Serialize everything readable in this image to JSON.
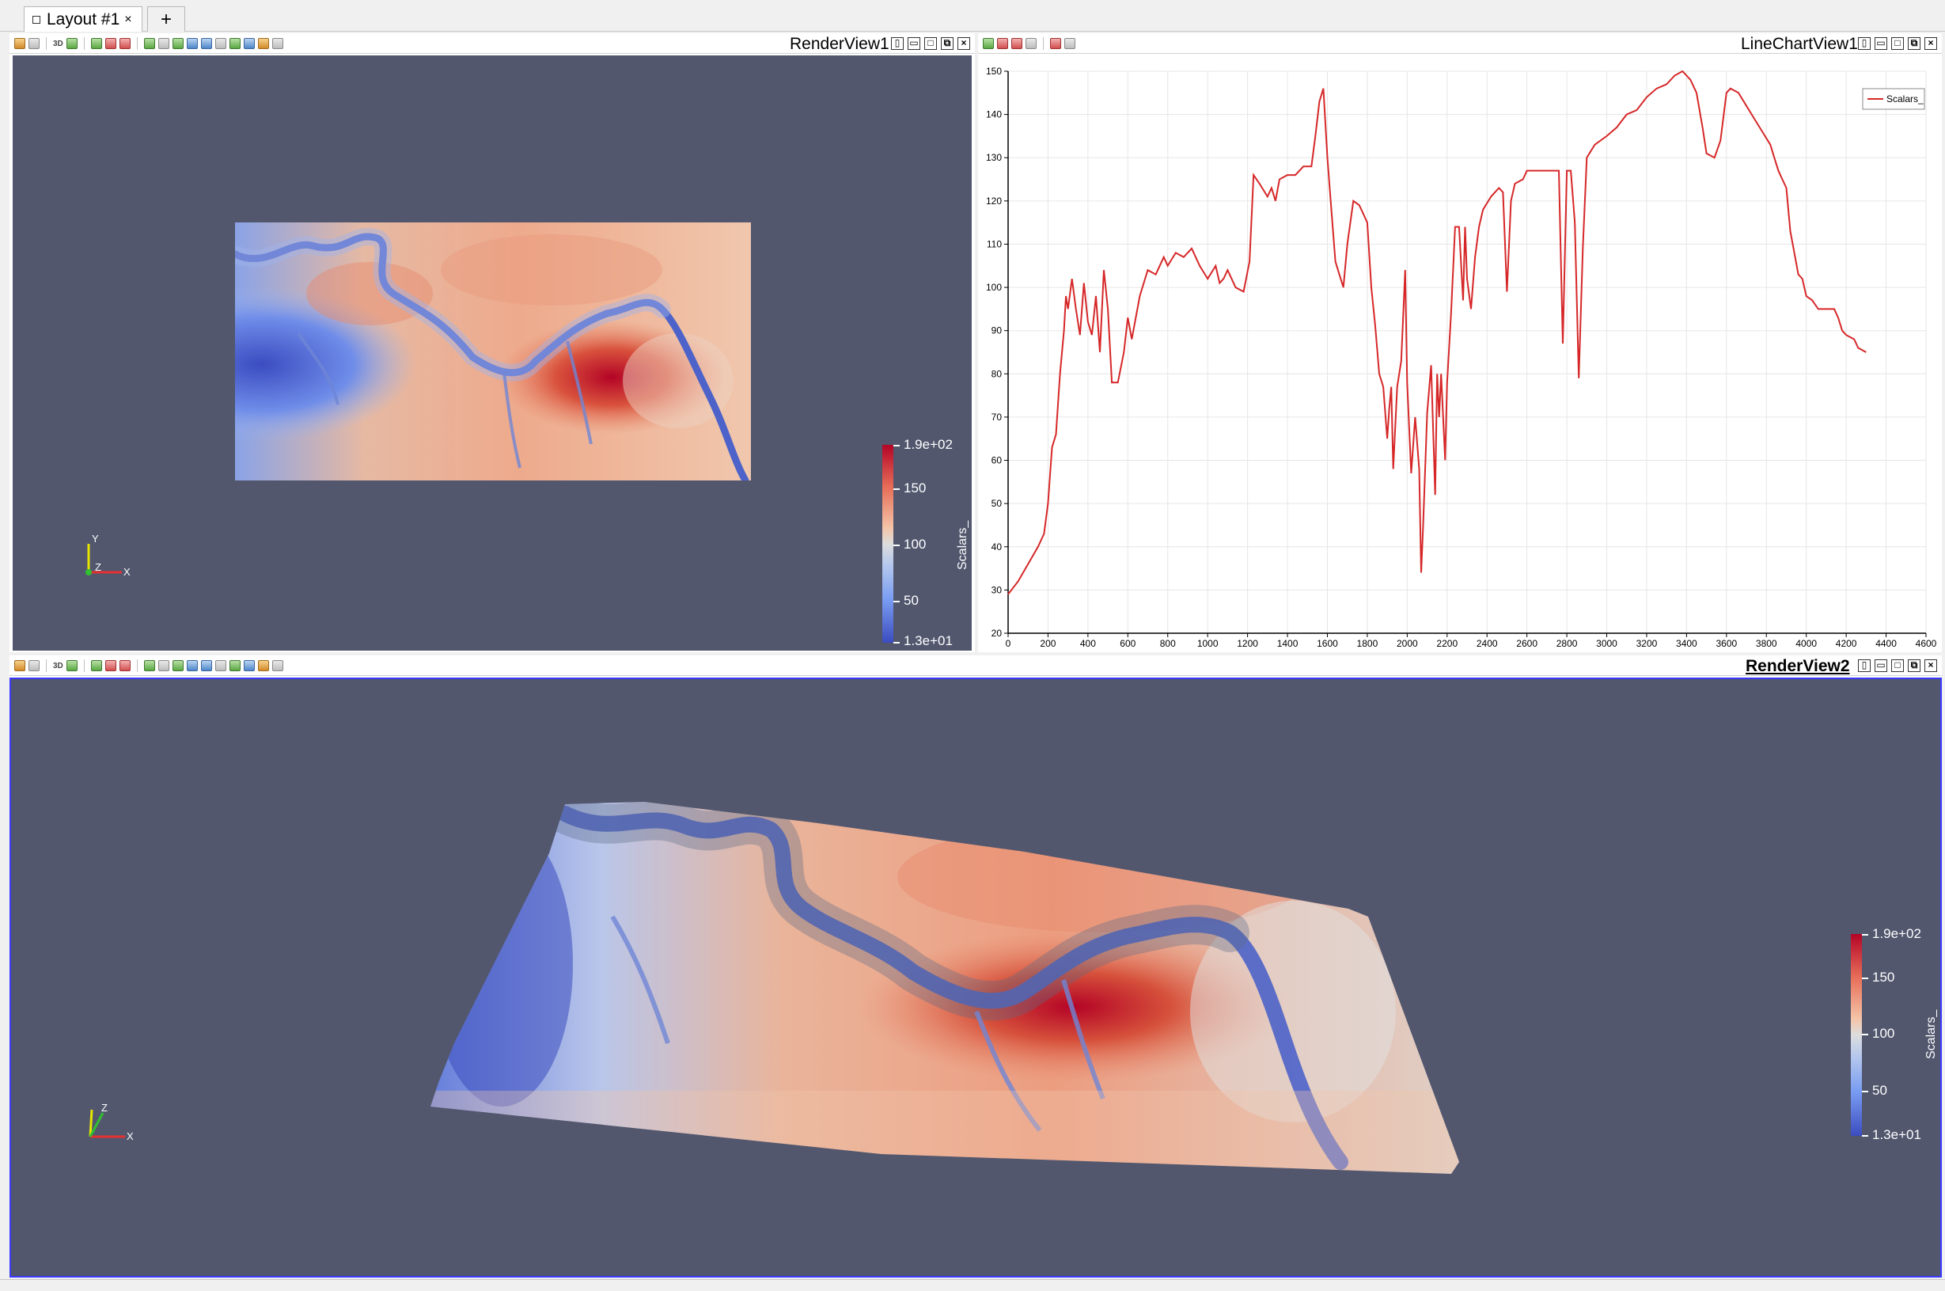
{
  "layout_tabs": [
    {
      "label": "Layout #1",
      "close": "×"
    },
    {
      "label": "+"
    }
  ],
  "toolbar": {
    "threed_label": "3D"
  },
  "views": {
    "render_view_1": {
      "title": "RenderView1"
    },
    "line_chart_view_1": {
      "title": "LineChartView1"
    },
    "render_view_2": {
      "title": "RenderView2"
    }
  },
  "view_buttons": [
    "split-horizontal",
    "split-vertical",
    "maximize",
    "undock",
    "close"
  ],
  "scalar_bar": {
    "title": "Scalars_",
    "labels": [
      "1.9e+02",
      "150",
      "100",
      "50",
      "1.3e+01"
    ]
  },
  "axes": {
    "x": "X",
    "y": "Y",
    "z": "Z"
  },
  "colors": {
    "background": "#52576e",
    "line": "#d62728",
    "colormap_high": "#b40426",
    "colormap_low": "#3b4cc0",
    "active_frame": "#3a3aff"
  },
  "chart_data": {
    "type": "line",
    "legend": {
      "position": "top-right",
      "entries": [
        "Scalars_"
      ]
    },
    "xlim": [
      0,
      4600
    ],
    "ylim": [
      20,
      150
    ],
    "x_ticks": [
      0,
      200,
      400,
      600,
      800,
      1000,
      1200,
      1400,
      1600,
      1800,
      2000,
      2200,
      2400,
      2600,
      2800,
      3000,
      3200,
      3400,
      3600,
      3800,
      4000,
      4200,
      4400,
      4600
    ],
    "y_ticks": [
      20,
      30,
      40,
      50,
      60,
      70,
      80,
      90,
      100,
      110,
      120,
      130,
      140,
      150
    ],
    "grid": true,
    "series": [
      {
        "name": "Scalars_",
        "color": "#d62728",
        "points": [
          [
            0,
            29
          ],
          [
            50,
            32
          ],
          [
            100,
            36
          ],
          [
            150,
            40
          ],
          [
            180,
            43
          ],
          [
            200,
            50
          ],
          [
            220,
            63
          ],
          [
            240,
            66
          ],
          [
            260,
            80
          ],
          [
            280,
            90
          ],
          [
            290,
            98
          ],
          [
            300,
            95
          ],
          [
            320,
            102
          ],
          [
            340,
            95
          ],
          [
            360,
            89
          ],
          [
            380,
            101
          ],
          [
            400,
            92
          ],
          [
            420,
            89
          ],
          [
            440,
            98
          ],
          [
            460,
            85
          ],
          [
            480,
            104
          ],
          [
            500,
            95
          ],
          [
            520,
            78
          ],
          [
            550,
            78
          ],
          [
            580,
            85
          ],
          [
            600,
            93
          ],
          [
            620,
            88
          ],
          [
            660,
            98
          ],
          [
            700,
            104
          ],
          [
            740,
            103
          ],
          [
            780,
            107
          ],
          [
            800,
            105
          ],
          [
            840,
            108
          ],
          [
            880,
            107
          ],
          [
            920,
            109
          ],
          [
            960,
            105
          ],
          [
            1000,
            102
          ],
          [
            1040,
            105
          ],
          [
            1060,
            101
          ],
          [
            1080,
            102
          ],
          [
            1100,
            104
          ],
          [
            1140,
            100
          ],
          [
            1180,
            99
          ],
          [
            1210,
            106
          ],
          [
            1230,
            126
          ],
          [
            1260,
            124
          ],
          [
            1300,
            121
          ],
          [
            1320,
            123
          ],
          [
            1340,
            120
          ],
          [
            1360,
            125
          ],
          [
            1400,
            126
          ],
          [
            1440,
            126
          ],
          [
            1480,
            128
          ],
          [
            1520,
            128
          ],
          [
            1540,
            135
          ],
          [
            1560,
            143
          ],
          [
            1580,
            146
          ],
          [
            1600,
            130
          ],
          [
            1620,
            118
          ],
          [
            1640,
            106
          ],
          [
            1660,
            103
          ],
          [
            1680,
            100
          ],
          [
            1700,
            110
          ],
          [
            1730,
            120
          ],
          [
            1760,
            119
          ],
          [
            1780,
            117
          ],
          [
            1800,
            115
          ],
          [
            1820,
            100
          ],
          [
            1840,
            91
          ],
          [
            1860,
            80
          ],
          [
            1880,
            77
          ],
          [
            1900,
            65
          ],
          [
            1910,
            72
          ],
          [
            1920,
            77
          ],
          [
            1930,
            58
          ],
          [
            1950,
            77
          ],
          [
            1970,
            83
          ],
          [
            1990,
            104
          ],
          [
            2000,
            78
          ],
          [
            2020,
            57
          ],
          [
            2040,
            70
          ],
          [
            2060,
            58
          ],
          [
            2070,
            34
          ],
          [
            2080,
            45
          ],
          [
            2100,
            71
          ],
          [
            2120,
            82
          ],
          [
            2140,
            52
          ],
          [
            2150,
            80
          ],
          [
            2160,
            70
          ],
          [
            2170,
            80
          ],
          [
            2190,
            60
          ],
          [
            2200,
            78
          ],
          [
            2220,
            94
          ],
          [
            2240,
            114
          ],
          [
            2260,
            114
          ],
          [
            2280,
            97
          ],
          [
            2290,
            114
          ],
          [
            2300,
            102
          ],
          [
            2320,
            95
          ],
          [
            2340,
            107
          ],
          [
            2360,
            114
          ],
          [
            2380,
            118
          ],
          [
            2420,
            121
          ],
          [
            2460,
            123
          ],
          [
            2480,
            122
          ],
          [
            2500,
            99
          ],
          [
            2520,
            120
          ],
          [
            2540,
            124
          ],
          [
            2580,
            125
          ],
          [
            2600,
            127
          ],
          [
            2650,
            127
          ],
          [
            2700,
            127
          ],
          [
            2740,
            127
          ],
          [
            2760,
            127
          ],
          [
            2780,
            87
          ],
          [
            2800,
            127
          ],
          [
            2820,
            127
          ],
          [
            2840,
            115
          ],
          [
            2860,
            79
          ],
          [
            2880,
            109
          ],
          [
            2900,
            130
          ],
          [
            2940,
            133
          ],
          [
            3000,
            135
          ],
          [
            3050,
            137
          ],
          [
            3100,
            140
          ],
          [
            3150,
            141
          ],
          [
            3200,
            144
          ],
          [
            3250,
            146
          ],
          [
            3300,
            147
          ],
          [
            3340,
            149
          ],
          [
            3380,
            150
          ],
          [
            3420,
            148
          ],
          [
            3450,
            145
          ],
          [
            3480,
            137
          ],
          [
            3500,
            131
          ],
          [
            3540,
            130
          ],
          [
            3570,
            134
          ],
          [
            3600,
            145
          ],
          [
            3620,
            146
          ],
          [
            3660,
            145
          ],
          [
            3700,
            142
          ],
          [
            3740,
            139
          ],
          [
            3780,
            136
          ],
          [
            3820,
            133
          ],
          [
            3840,
            130
          ],
          [
            3860,
            127
          ],
          [
            3880,
            125
          ],
          [
            3900,
            123
          ],
          [
            3920,
            113
          ],
          [
            3940,
            108
          ],
          [
            3960,
            103
          ],
          [
            3980,
            102
          ],
          [
            4000,
            98
          ],
          [
            4030,
            97
          ],
          [
            4060,
            95
          ],
          [
            4100,
            95
          ],
          [
            4140,
            95
          ],
          [
            4160,
            93
          ],
          [
            4180,
            90
          ],
          [
            4200,
            89
          ],
          [
            4240,
            88
          ],
          [
            4260,
            86
          ],
          [
            4300,
            85
          ]
        ]
      }
    ]
  }
}
